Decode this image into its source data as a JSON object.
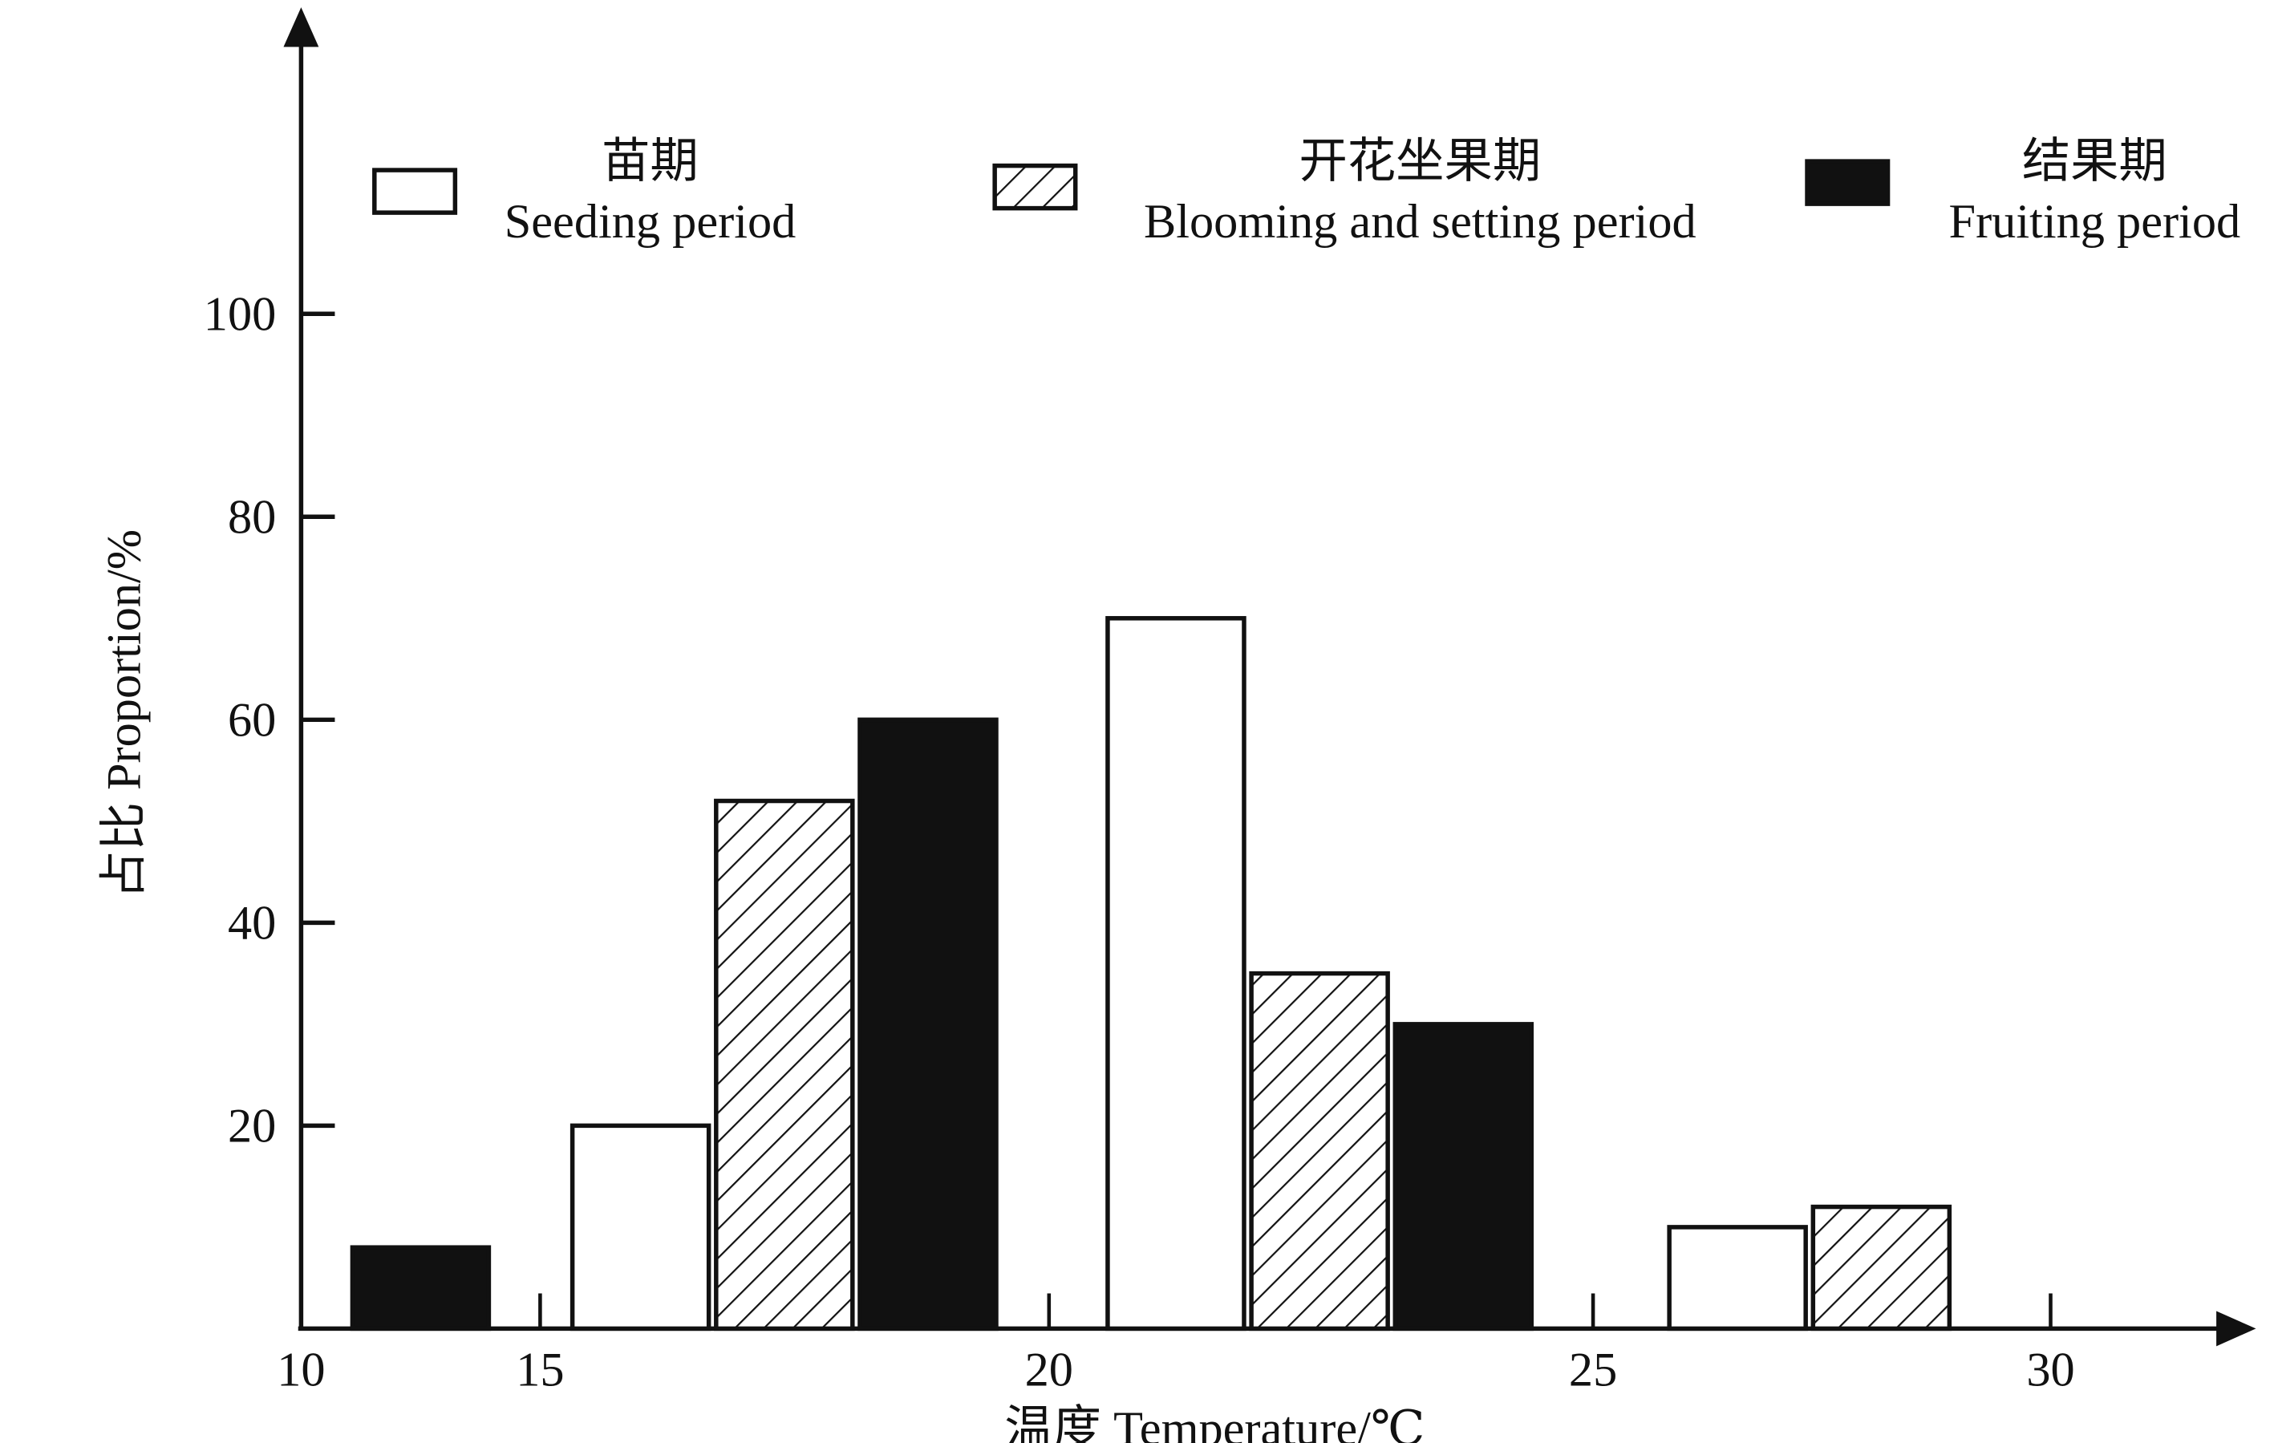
{
  "chart_data": {
    "type": "bar",
    "title": "",
    "xlabel": "温度 Temperature/℃",
    "ylabel": "占比 Proportion/%",
    "ylim": [
      0,
      100
    ],
    "x_tick_labels": [
      "10",
      "15",
      "20",
      "25",
      "30"
    ],
    "y_tick_labels": [
      "20",
      "40",
      "60",
      "80",
      "100"
    ],
    "y_ticks": [
      20,
      40,
      60,
      80,
      100
    ],
    "categories": [
      "10-15",
      "15-20",
      "20-25",
      "25-30"
    ],
    "series": [
      {
        "name": "Seeding period",
        "name_cn": "苗期",
        "fill": "white",
        "values": [
          null,
          20,
          70,
          10
        ]
      },
      {
        "name": "Blooming and setting period",
        "name_cn": "开花坐果期",
        "fill": "hatch",
        "values": [
          null,
          52,
          35,
          12
        ]
      },
      {
        "name": "Fruiting period",
        "name_cn": "结果期",
        "fill": "black",
        "values": [
          8,
          60,
          30,
          null
        ]
      }
    ],
    "legend_position": "top",
    "grid": false,
    "colors": {
      "ink": "#111111",
      "background": "#ffffff"
    }
  }
}
